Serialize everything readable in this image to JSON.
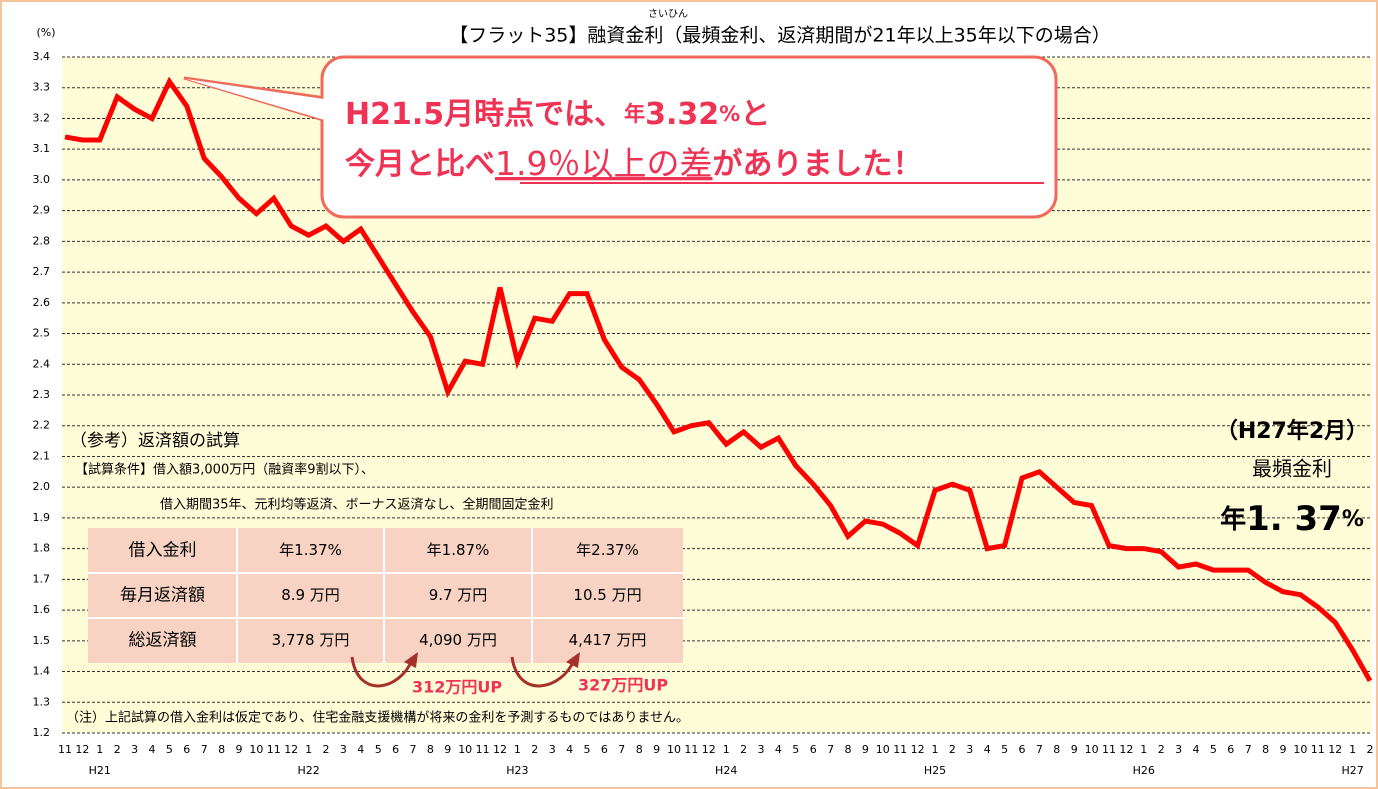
{
  "chart_data": {
    "type": "line",
    "title": "【フラット35】融資金利（最頻金利、返済期間が21年以上35年以下の場合）",
    "title_ruby": "さいひん",
    "y_unit": "(%)",
    "categories": [
      "11",
      "12",
      "1",
      "2",
      "3",
      "4",
      "5",
      "6",
      "7",
      "8",
      "9",
      "10",
      "11",
      "12",
      "1",
      "2",
      "3",
      "4",
      "5",
      "6",
      "7",
      "8",
      "9",
      "10",
      "11",
      "12",
      "1",
      "2",
      "3",
      "4",
      "5",
      "6",
      "7",
      "8",
      "9",
      "10",
      "11",
      "12",
      "1",
      "2",
      "3",
      "4",
      "5",
      "6",
      "7",
      "8",
      "9",
      "10",
      "11",
      "12",
      "1",
      "2",
      "3",
      "4",
      "5",
      "6",
      "7",
      "8",
      "9",
      "10",
      "11",
      "12",
      "1",
      "2",
      "3",
      "4",
      "5",
      "6",
      "7",
      "8",
      "9",
      "10",
      "11",
      "12",
      "1",
      "2"
    ],
    "year_labels": [
      "H21",
      "H22",
      "H23",
      "H24",
      "H25",
      "H26",
      "H27"
    ],
    "series": [
      {
        "color": "#ff0000",
        "values": [
          3.14,
          3.13,
          3.13,
          3.27,
          3.23,
          3.2,
          3.32,
          3.24,
          3.07,
          3.01,
          2.94,
          2.89,
          2.94,
          2.85,
          2.82,
          2.85,
          2.8,
          2.84,
          2.75,
          2.66,
          2.57,
          2.49,
          2.31,
          2.41,
          2.4,
          2.65,
          2.41,
          2.55,
          2.54,
          2.63,
          2.63,
          2.48,
          2.39,
          2.35,
          2.27,
          2.18,
          2.2,
          2.21,
          2.14,
          2.18,
          2.13,
          2.16,
          2.07,
          2.01,
          1.94,
          1.84,
          1.89,
          1.88,
          1.85,
          1.81,
          1.99,
          2.01,
          1.99,
          1.8,
          1.81,
          2.03,
          2.05,
          2.0,
          1.95,
          1.94,
          1.81,
          1.8,
          1.8,
          1.79,
          1.74,
          1.75,
          1.73,
          1.73,
          1.73,
          1.69,
          1.66,
          1.65,
          1.61,
          1.56,
          1.47,
          1.37
        ]
      }
    ],
    "ylim": [
      1.2,
      3.4
    ],
    "yticks": [
      1.2,
      1.3,
      1.4,
      1.5,
      1.6,
      1.7,
      1.8,
      1.9,
      {
        "value": 2,
        "label": "2.0"
      },
      2.1,
      2.2,
      2.3,
      2.4,
      2.5,
      2.6,
      2.7,
      2.8,
      2.9,
      {
        "value": 3,
        "label": "3.0"
      },
      3.1,
      3.2,
      3.3,
      3.4
    ],
    "grid": true,
    "callout": {
      "line1": [
        "H21.5月時点では、",
        "年",
        "3.32",
        "%",
        "と"
      ],
      "line2": [
        "今月と比べ",
        "1.9％以上の差",
        "がありました！"
      ]
    },
    "latest": {
      "date": "（H27年2月）",
      "label": "最頻金利",
      "rate": [
        "年",
        "1. 37",
        "%"
      ]
    },
    "reference": {
      "heading": "（参考）返済額の試算",
      "condition1": "【試算条件】借入額3,000万円（融資率9割以下）、",
      "condition2": "借入期間35年、元利均等返済、ボーナス返済なし、全期間固定金利",
      "table": [
        [
          "借入金利",
          "年1.37%",
          "年1.87%",
          "年2.37%"
        ],
        [
          "毎月返済額",
          "8.9 万円",
          "9.7 万円",
          "10.5 万円"
        ],
        [
          "総返済額",
          "3,778 万円",
          "4,090 万円",
          "4,417 万円"
        ]
      ],
      "diff1": "312万円UP",
      "diff2": "327万円UP"
    },
    "note": "（注）上記試算の借入金利は仮定であり、住宅金融支援機構が将来の金利を予測するものではありません。"
  }
}
